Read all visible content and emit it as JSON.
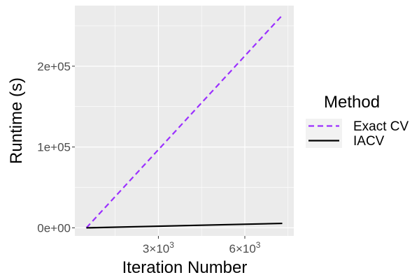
{
  "chart_data": {
    "type": "line",
    "title": "",
    "xlabel": "Iteration Number",
    "ylabel": "Runtime (s)",
    "xlim": [
      100,
      7700
    ],
    "ylim": [
      -10000,
      275000
    ],
    "xticks": [
      {
        "value": 3000,
        "mantissa": "3",
        "times": "×",
        "base": "10",
        "exp": "3"
      },
      {
        "value": 6000,
        "mantissa": "6",
        "times": "×",
        "base": "10",
        "exp": "3"
      }
    ],
    "yticks": [
      {
        "value": 0,
        "label": "0e+00"
      },
      {
        "value": 100000,
        "label": "1e+05"
      },
      {
        "value": 200000,
        "label": "2e+05"
      }
    ],
    "grid": true,
    "legend": {
      "title": "Method",
      "placement": "right"
    },
    "series": [
      {
        "name": "Exact CV",
        "color": "#9b30ff",
        "dash": "dashed",
        "x": [
          500,
          7300
        ],
        "y": [
          0,
          263000
        ]
      },
      {
        "name": "IACV",
        "color": "#000000",
        "dash": "solid",
        "x": [
          500,
          7300
        ],
        "y": [
          0,
          5500
        ]
      }
    ]
  }
}
